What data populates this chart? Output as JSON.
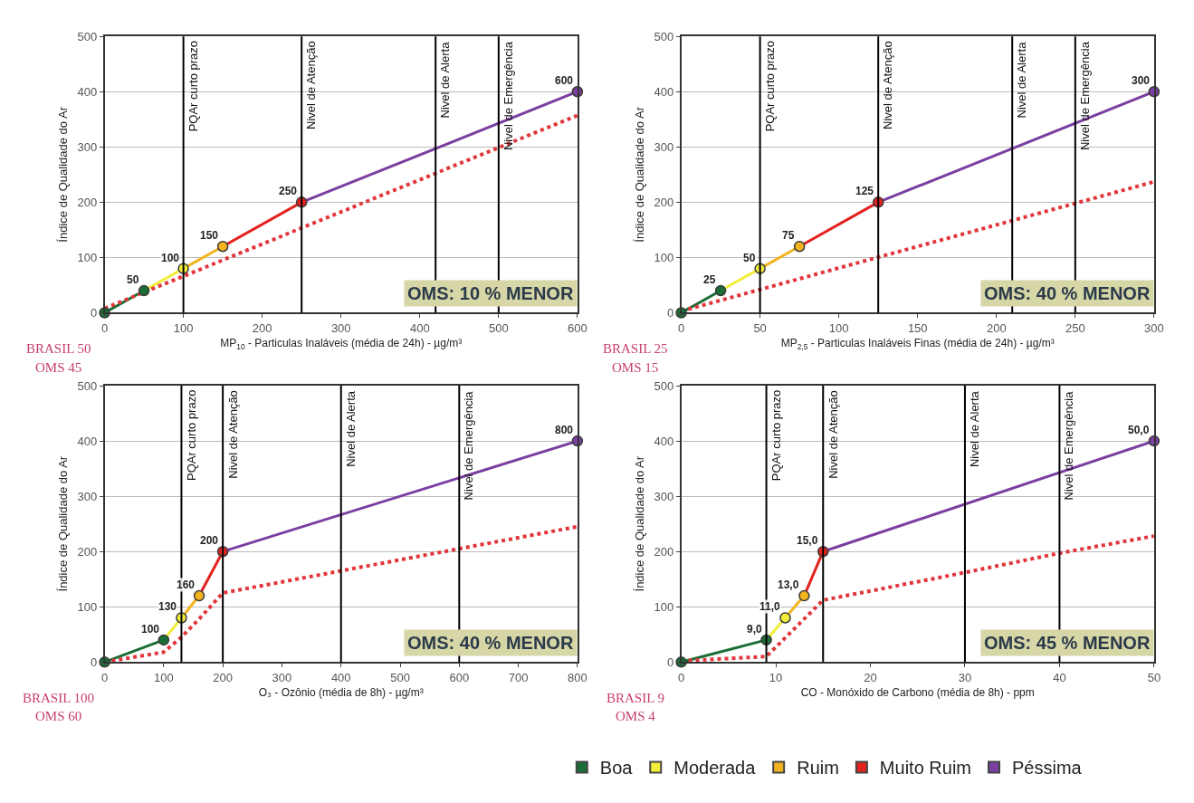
{
  "chart_data": [
    {
      "type": "line",
      "xlabel": "MP$_{10}$ - Particulas Inaláveis (média de 24h) - µg/m³",
      "ylabel": "Índice de Qualidade do Ar",
      "xlim": [
        0,
        600
      ],
      "xticks": [
        0,
        100,
        200,
        300,
        400,
        500,
        600
      ],
      "ylim": [
        0,
        500
      ],
      "yticks": [
        0,
        100,
        200,
        300,
        400,
        500
      ],
      "grid": "y",
      "marker": "circle",
      "legend": "bottom",
      "series": [
        {
          "name": "Boa",
          "color": "#1a6e35",
          "x": [
            0,
            50
          ],
          "values": [
            0,
            40
          ]
        },
        {
          "name": "Moderada",
          "color": "#f2ee3a",
          "x": [
            50,
            100
          ],
          "values": [
            40,
            80
          ]
        },
        {
          "name": "Ruim",
          "color": "#f2b31e",
          "x": [
            100,
            150
          ],
          "values": [
            80,
            120
          ]
        },
        {
          "name": "Muito Ruim",
          "color": "#e3221f",
          "x": [
            150,
            250
          ],
          "values": [
            120,
            200
          ]
        },
        {
          "name": "Péssima",
          "color": "#7a3fa0",
          "x": [
            250,
            600
          ],
          "values": [
            200,
            400
          ]
        },
        {
          "color": "#e0363a",
          "line_style": "dotted",
          "marker": "none",
          "x": [
            0,
            600
          ],
          "values": [
            8,
            357
          ]
        }
      ],
      "ref_lines": [
        {
          "axis": "x",
          "value": 100,
          "label": "PQAr curto prazo",
          "color": "#000000"
        },
        {
          "axis": "x",
          "value": 250,
          "label": "Nivel de Atenção",
          "color": "#000000"
        },
        {
          "axis": "x",
          "value": 420,
          "label": "Nivel de Alerta",
          "color": "#000000"
        },
        {
          "axis": "x",
          "value": 500,
          "label": "Nivel de Emergência",
          "color": "#000000"
        }
      ],
      "annotations": [
        "OMS: 10 % MENOR",
        "BRASIL 50",
        "OMS 45",
        {
          "text": "50",
          "x": 50,
          "y": 40
        },
        {
          "text": "100",
          "x": 100,
          "y": 80
        },
        {
          "text": "150",
          "x": 150,
          "y": 120
        },
        {
          "text": "250",
          "x": 250,
          "y": 200
        },
        {
          "text": "600",
          "x": 600,
          "y": 400
        }
      ]
    },
    {
      "type": "line",
      "xlabel": "MP$_{2,5}$ - Particulas Inaláveis Finas (média de 24h) - µg/m³",
      "ylabel": "Índice de Qualidade do Ar",
      "xlim": [
        0,
        300
      ],
      "xticks": [
        0,
        50,
        100,
        150,
        200,
        250,
        300
      ],
      "ylim": [
        0,
        500
      ],
      "yticks": [
        0,
        100,
        200,
        300,
        400,
        500
      ],
      "grid": "y",
      "marker": "circle",
      "series": [
        {
          "color": "#1a6e35",
          "x": [
            0,
            25
          ],
          "values": [
            0,
            40
          ]
        },
        {
          "color": "#f2ee3a",
          "x": [
            25,
            50
          ],
          "values": [
            40,
            80
          ]
        },
        {
          "color": "#f2b31e",
          "x": [
            50,
            75
          ],
          "values": [
            80,
            120
          ]
        },
        {
          "color": "#e3221f",
          "x": [
            75,
            125
          ],
          "values": [
            120,
            200
          ]
        },
        {
          "color": "#7a3fa0",
          "x": [
            125,
            300
          ],
          "values": [
            200,
            400
          ]
        },
        {
          "color": "#e0363a",
          "line_style": "dotted",
          "marker": "none",
          "x": [
            0,
            300
          ],
          "values": [
            3,
            237
          ]
        }
      ],
      "ref_lines": [
        {
          "axis": "x",
          "value": 50,
          "label": "PQAr curto prazo",
          "color": "#000000"
        },
        {
          "axis": "x",
          "value": 125,
          "label": "Nivel de Atenção",
          "color": "#000000"
        },
        {
          "axis": "x",
          "value": 210,
          "label": "Nivel de Alerta",
          "color": "#000000"
        },
        {
          "axis": "x",
          "value": 250,
          "label": "Nivel de Emergência",
          "color": "#000000"
        }
      ],
      "annotations": [
        "OMS: 40 % MENOR",
        "BRASIL 25",
        "OMS 15",
        {
          "text": "25",
          "x": 25,
          "y": 40
        },
        {
          "text": "50",
          "x": 50,
          "y": 80
        },
        {
          "text": "75",
          "x": 75,
          "y": 120
        },
        {
          "text": "125",
          "x": 125,
          "y": 200
        },
        {
          "text": "300",
          "x": 300,
          "y": 400
        }
      ]
    },
    {
      "type": "line",
      "xlabel": "O₃ - Ozônio (média de 8h) - µg/m³",
      "ylabel": "Índice de Qualidade do Ar",
      "xlim": [
        0,
        800
      ],
      "xticks": [
        0,
        100,
        200,
        300,
        400,
        500,
        600,
        700,
        800
      ],
      "ylim": [
        0,
        500
      ],
      "yticks": [
        0,
        100,
        200,
        300,
        400,
        500
      ],
      "grid": "y",
      "marker": "circle",
      "series": [
        {
          "color": "#1a6e35",
          "x": [
            0,
            100
          ],
          "values": [
            0,
            40
          ]
        },
        {
          "color": "#f2ee3a",
          "x": [
            100,
            130
          ],
          "values": [
            40,
            80
          ]
        },
        {
          "color": "#f2b31e",
          "x": [
            130,
            160
          ],
          "values": [
            80,
            120
          ]
        },
        {
          "color": "#e3221f",
          "x": [
            160,
            200
          ],
          "values": [
            120,
            200
          ]
        },
        {
          "color": "#7a3fa0",
          "x": [
            200,
            800
          ],
          "values": [
            200,
            400
          ]
        },
        {
          "color": "#e0363a",
          "line_style": "dotted",
          "marker": "none",
          "x": [
            0,
            100,
            130,
            160,
            200,
            400,
            600,
            800
          ],
          "values": [
            0,
            18,
            45,
            78,
            125,
            165,
            205,
            245
          ]
        }
      ],
      "ref_lines": [
        {
          "axis": "x",
          "value": 130,
          "label": "PQAr curto prazo",
          "color": "#000000"
        },
        {
          "axis": "x",
          "value": 200,
          "label": "Nivel de Atenção",
          "color": "#000000"
        },
        {
          "axis": "x",
          "value": 400,
          "label": "Nivel de Alerta",
          "color": "#000000"
        },
        {
          "axis": "x",
          "value": 600,
          "label": "Nivel de Emergência",
          "color": "#000000"
        }
      ],
      "annotations": [
        "OMS: 40 % MENOR",
        "BRASIL 100",
        "OMS 60",
        {
          "text": "100",
          "x": 100,
          "y": 40
        },
        {
          "text": "130",
          "x": 130,
          "y": 80
        },
        {
          "text": "160",
          "x": 160,
          "y": 120
        },
        {
          "text": "200",
          "x": 200,
          "y": 200
        },
        {
          "text": "800",
          "x": 800,
          "y": 400
        }
      ]
    },
    {
      "type": "line",
      "xlabel": "CO - Monóxido de Carbono (média de 8h) - ppm",
      "ylabel": "Índice de Qualidade do Ar",
      "xlim": [
        0,
        50
      ],
      "xticks": [
        0,
        10,
        20,
        30,
        40,
        50
      ],
      "ylim": [
        0,
        500
      ],
      "yticks": [
        0,
        100,
        200,
        300,
        400,
        500
      ],
      "grid": "y",
      "marker": "circle",
      "series": [
        {
          "color": "#1a6e35",
          "x": [
            0,
            9
          ],
          "values": [
            0,
            40
          ]
        },
        {
          "color": "#f2ee3a",
          "x": [
            9,
            11
          ],
          "values": [
            40,
            80
          ]
        },
        {
          "color": "#f2b31e",
          "x": [
            11,
            13
          ],
          "values": [
            80,
            120
          ]
        },
        {
          "color": "#e3221f",
          "x": [
            13,
            15
          ],
          "values": [
            120,
            200
          ]
        },
        {
          "color": "#7a3fa0",
          "x": [
            15,
            50
          ],
          "values": [
            200,
            400
          ]
        },
        {
          "color": "#e0363a",
          "line_style": "dotted",
          "marker": "none",
          "x": [
            0,
            9,
            15,
            30,
            40,
            50
          ],
          "values": [
            2,
            10,
            112,
            162,
            197,
            228
          ]
        }
      ],
      "ref_lines": [
        {
          "axis": "x",
          "value": 9,
          "label": "PQAr curto prazo",
          "color": "#000000"
        },
        {
          "axis": "x",
          "value": 15,
          "label": "Nivel de Atenção",
          "color": "#000000"
        },
        {
          "axis": "x",
          "value": 30,
          "label": "Nivel de Alerta",
          "color": "#000000"
        },
        {
          "axis": "x",
          "value": 40,
          "label": "Nivel de Emergência",
          "color": "#000000"
        }
      ],
      "annotations": [
        "OMS: 45 % MENOR",
        "BRASIL 9",
        "OMS 4",
        {
          "text": "9,0",
          "x": 9,
          "y": 40
        },
        {
          "text": "11,0",
          "x": 11,
          "y": 80
        },
        {
          "text": "13,0",
          "x": 13,
          "y": 120
        },
        {
          "text": "15,0",
          "x": 15,
          "y": 200
        },
        {
          "text": "50,0",
          "x": 50,
          "y": 400
        }
      ]
    }
  ]
}
